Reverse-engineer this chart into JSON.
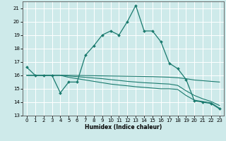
{
  "xlabel": "Humidex (Indice chaleur)",
  "background_color": "#ceeaea",
  "grid_color": "#ffffff",
  "line_color": "#1a7a6e",
  "xlim": [
    -0.5,
    23.5
  ],
  "ylim": [
    13,
    21.5
  ],
  "yticks": [
    13,
    14,
    15,
    16,
    17,
    18,
    19,
    20,
    21
  ],
  "xticks": [
    0,
    1,
    2,
    3,
    4,
    5,
    6,
    7,
    8,
    9,
    10,
    11,
    12,
    13,
    14,
    15,
    16,
    17,
    18,
    19,
    20,
    21,
    22,
    23
  ],
  "series1_x": [
    0,
    1,
    2,
    3,
    4,
    5,
    6,
    7,
    8,
    9,
    10,
    11,
    12,
    13,
    14,
    15,
    16,
    17,
    18,
    19,
    20,
    21,
    22,
    23
  ],
  "series1_y": [
    16.6,
    16.0,
    16.0,
    16.0,
    14.7,
    15.5,
    15.5,
    17.5,
    18.2,
    19.0,
    19.3,
    19.0,
    20.0,
    21.2,
    19.3,
    19.3,
    18.5,
    16.9,
    16.5,
    15.7,
    14.1,
    14.0,
    13.9,
    13.5
  ],
  "series2_x": [
    0,
    1,
    2,
    3,
    4,
    5,
    6,
    7,
    8,
    9,
    10,
    11,
    12,
    13,
    14,
    15,
    16,
    17,
    18,
    19,
    20,
    21,
    22,
    23
  ],
  "series2_y": [
    16.0,
    16.0,
    16.0,
    16.0,
    16.0,
    15.85,
    15.75,
    15.65,
    15.55,
    15.45,
    15.35,
    15.28,
    15.22,
    15.15,
    15.1,
    15.05,
    15.0,
    15.0,
    14.95,
    14.5,
    14.15,
    14.05,
    13.95,
    13.55
  ],
  "series3_x": [
    0,
    1,
    2,
    3,
    4,
    5,
    6,
    7,
    8,
    9,
    10,
    11,
    12,
    13,
    14,
    15,
    16,
    17,
    18,
    19,
    20,
    21,
    22,
    23
  ],
  "series3_y": [
    16.0,
    16.0,
    16.0,
    16.0,
    16.0,
    15.95,
    15.9,
    15.85,
    15.8,
    15.75,
    15.68,
    15.62,
    15.55,
    15.5,
    15.45,
    15.42,
    15.38,
    15.35,
    15.25,
    14.85,
    14.5,
    14.25,
    14.05,
    13.75
  ],
  "series4_x": [
    0,
    1,
    2,
    3,
    4,
    5,
    6,
    7,
    8,
    9,
    10,
    11,
    12,
    13,
    14,
    15,
    16,
    17,
    18,
    19,
    20,
    21,
    22,
    23
  ],
  "series4_y": [
    16.0,
    16.0,
    16.0,
    16.0,
    16.0,
    16.0,
    15.99,
    15.98,
    15.97,
    15.96,
    15.95,
    15.94,
    15.93,
    15.92,
    15.91,
    15.9,
    15.88,
    15.86,
    15.82,
    15.75,
    15.65,
    15.6,
    15.55,
    15.5
  ]
}
